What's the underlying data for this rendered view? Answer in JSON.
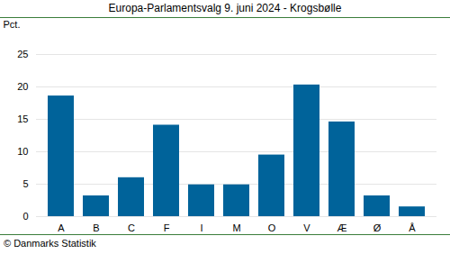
{
  "chart_data": {
    "type": "bar",
    "title": "Europa-Parlamentsvalg 9. juni 2024 - Krogsbølle",
    "y_label": "Pct.",
    "caption": "© Danmarks Statistik",
    "categories": [
      "A",
      "B",
      "C",
      "F",
      "I",
      "M",
      "O",
      "V",
      "Æ",
      "Ø",
      "Å"
    ],
    "values": [
      18.6,
      3.2,
      6.0,
      14.1,
      4.9,
      4.9,
      9.5,
      20.3,
      14.6,
      3.2,
      1.5
    ],
    "color": "#00639a",
    "ylim": [
      0,
      25
    ],
    "yticks": [
      0,
      5,
      10,
      15,
      20,
      25
    ],
    "grid": true
  }
}
